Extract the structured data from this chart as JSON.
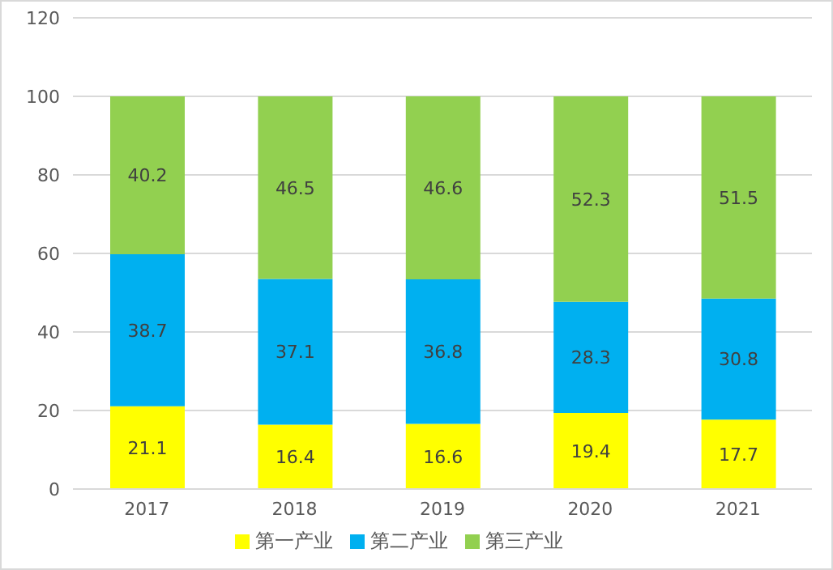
{
  "chart_data": {
    "type": "bar",
    "stacked": true,
    "categories": [
      "2017",
      "2018",
      "2019",
      "2020",
      "2021"
    ],
    "series": [
      {
        "name": "第一产业",
        "color": "#ffff00",
        "values": [
          21.1,
          16.4,
          16.6,
          19.4,
          17.7
        ]
      },
      {
        "name": "第二产业",
        "color": "#00b0f0",
        "values": [
          38.7,
          37.1,
          36.8,
          28.3,
          30.8
        ]
      },
      {
        "name": "第三产业",
        "color": "#92d050",
        "values": [
          40.2,
          46.5,
          46.6,
          52.3,
          51.5
        ]
      }
    ],
    "ylim": [
      0,
      120
    ],
    "yticks": [
      0,
      20,
      40,
      60,
      80,
      100,
      120
    ],
    "grid": "y",
    "legend": "bottom",
    "data_labels": true
  }
}
